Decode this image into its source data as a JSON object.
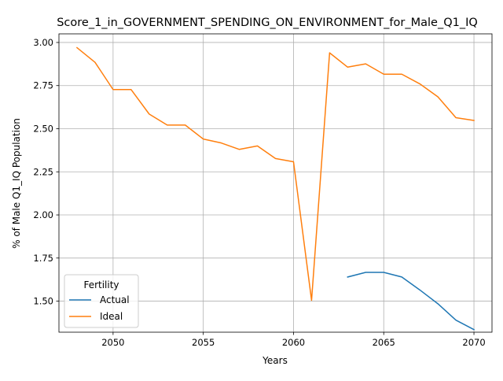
{
  "chart_data": {
    "type": "line",
    "title": "Score_1_in_GOVERNMENT_SPENDING_ON_ENVIRONMENT_for_Male_Q1_IQ",
    "xlabel": "Years",
    "ylabel": "% of Male Q1_IQ Population",
    "xlim": [
      2047,
      2071
    ],
    "ylim": [
      1.32,
      3.05
    ],
    "xticks": [
      2050,
      2055,
      2060,
      2065,
      2070
    ],
    "yticks": [
      1.5,
      1.75,
      2.0,
      2.25,
      2.5,
      2.75,
      3.0
    ],
    "ytick_labels": [
      "1.50",
      "1.75",
      "2.00",
      "2.25",
      "2.50",
      "2.75",
      "3.00"
    ],
    "grid": true,
    "legend": {
      "title": "Fertility",
      "placement": "lower-left"
    },
    "series": [
      {
        "name": "Actual",
        "color": "#1f77b4",
        "x": [
          2063,
          2064,
          2065,
          2066,
          2067,
          2068,
          2069,
          2070
        ],
        "values": [
          1.64,
          1.667,
          1.667,
          1.64,
          1.565,
          1.485,
          1.39,
          1.335
        ]
      },
      {
        "name": "Ideal",
        "color": "#ff7f0e",
        "x": [
          2048,
          2049,
          2050,
          2051,
          2052,
          2053,
          2054,
          2055,
          2056,
          2057,
          2058,
          2059,
          2060,
          2061,
          2062,
          2063,
          2064,
          2065,
          2066,
          2067,
          2068,
          2069,
          2070
        ],
        "values": [
          2.97,
          2.885,
          2.727,
          2.727,
          2.585,
          2.521,
          2.521,
          2.44,
          2.417,
          2.38,
          2.4,
          2.327,
          2.308,
          1.505,
          2.94,
          2.857,
          2.876,
          2.816,
          2.816,
          2.76,
          2.685,
          2.564,
          2.548
        ]
      }
    ]
  }
}
